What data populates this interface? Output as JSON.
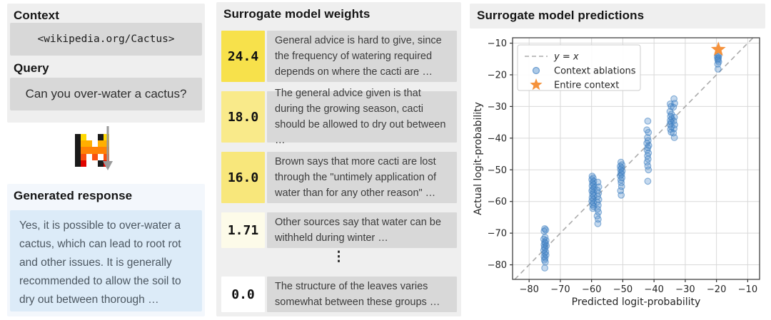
{
  "left_panel": {
    "context_label": "Context",
    "context_value": "<wikipedia.org/Cactus>",
    "query_label": "Query",
    "query_value": "Can you over-water a cactus?",
    "response_label": "Generated response",
    "response_value": "Yes, it is possible to over-water a cactus, which can lead to root rot and other issues. It is generally recommended to allow the soil to dry out between thorough …",
    "model_logo": {
      "name": "mistral-ai-logo",
      "palette": {
        "K": "#1a1a1a",
        "Y": "#ffd800",
        "A": "#ffaf00",
        "O": "#ff8205",
        "F": "#fa500f",
        "R": "#e10500",
        ".": "transparent"
      },
      "rows": [
        [
          "K",
          "Y",
          ".",
          ".",
          "K",
          "Y"
        ],
        [
          "K",
          "A",
          "A",
          ".",
          "A",
          "A"
        ],
        [
          "K",
          "O",
          "O",
          "O",
          "O",
          "O"
        ],
        [
          "K",
          "F",
          ".",
          "F",
          ".",
          "F"
        ],
        [
          "K",
          "R",
          ".",
          ".",
          "K",
          "R"
        ]
      ]
    },
    "arrow_color": "#9a9a9a"
  },
  "middle_panel": {
    "title": "Surrogate model weights",
    "ellipsis": "⋮",
    "rows": [
      {
        "weight": "24.4",
        "highlight": "#f7e14b",
        "text": "General advice is hard to give, since the frequency of watering required depends on where the cacti are …"
      },
      {
        "weight": "18.0",
        "highlight": "#f9ea8a",
        "text": "The general advice given is that during the growing season, cacti should be allowed to dry out between …"
      },
      {
        "weight": "16.0",
        "highlight": "#f8e77b",
        "text": "Brown says that more cacti are lost through the \"untimely application of water than for any other reason\" …"
      },
      {
        "weight": "1.71",
        "highlight": "#fdfbe9",
        "text": "Other sources say that water can be withheld during winter …"
      },
      {
        "weight": "0.0",
        "highlight": "#ffffff",
        "text": "The structure of the leaves varies somewhat between these groups …"
      }
    ]
  },
  "right_panel": {
    "title": "Surrogate model predictions"
  },
  "chart_data": {
    "type": "scatter",
    "xlabel": "Predicted logit-probability",
    "ylabel": "Actual logit-probability",
    "xlim": [
      -85.3,
      -6.2
    ],
    "ylim": [
      -84.6,
      -8.3
    ],
    "xticks": [
      -80,
      -70,
      -60,
      -50,
      -40,
      -30,
      -20,
      -10
    ],
    "yticks": [
      -10,
      -20,
      -30,
      -40,
      -50,
      -60,
      -70,
      -80
    ],
    "grid": true,
    "grid_color": "#d9d9d9",
    "legend_position": "upper left",
    "series": [
      {
        "name": "y = x",
        "type": "line",
        "style": "dashed",
        "color": "#ababab",
        "italic": true,
        "points": [
          [
            -84.6,
            -84.6
          ],
          [
            -8.3,
            -8.3
          ]
        ]
      },
      {
        "name": "Context ablations",
        "type": "scatter",
        "marker": "circle",
        "color": "#3d7ec0",
        "fill": "#4a8ac9",
        "alpha": 0.32,
        "points": [
          [
            -75.0,
            -68.6
          ],
          [
            -74.7,
            -69.0
          ],
          [
            -75.2,
            -69.4
          ],
          [
            -74.9,
            -71.3
          ],
          [
            -75.3,
            -71.9
          ],
          [
            -74.6,
            -72.3
          ],
          [
            -75.0,
            -72.8
          ],
          [
            -74.8,
            -73.2
          ],
          [
            -75.2,
            -73.6
          ],
          [
            -74.5,
            -74.0
          ],
          [
            -75.1,
            -74.4
          ],
          [
            -74.9,
            -74.9
          ],
          [
            -75.3,
            -75.4
          ],
          [
            -74.7,
            -75.9
          ],
          [
            -75.0,
            -76.4
          ],
          [
            -74.6,
            -76.9
          ],
          [
            -75.2,
            -77.4
          ],
          [
            -74.9,
            -77.9
          ],
          [
            -75.1,
            -78.5
          ],
          [
            -74.8,
            -79.1
          ],
          [
            -75.0,
            -81.0
          ],
          [
            -59.8,
            -52.0
          ],
          [
            -59.5,
            -52.6
          ],
          [
            -59.9,
            -53.1
          ],
          [
            -59.3,
            -53.6
          ],
          [
            -59.7,
            -54.1
          ],
          [
            -59.4,
            -54.6
          ],
          [
            -59.8,
            -55.1
          ],
          [
            -59.2,
            -55.6
          ],
          [
            -59.6,
            -56.1
          ],
          [
            -59.9,
            -56.6
          ],
          [
            -59.4,
            -57.1
          ],
          [
            -59.7,
            -57.7
          ],
          [
            -59.3,
            -58.2
          ],
          [
            -59.8,
            -58.8
          ],
          [
            -59.5,
            -59.3
          ],
          [
            -59.9,
            -59.9
          ],
          [
            -59.4,
            -60.4
          ],
          [
            -59.7,
            -61.0
          ],
          [
            -59.3,
            -61.6
          ],
          [
            -59.6,
            -62.2
          ],
          [
            -58.0,
            -53.9
          ],
          [
            -57.7,
            -55.4
          ],
          [
            -58.2,
            -56.4
          ],
          [
            -57.8,
            -57.4
          ],
          [
            -58.1,
            -58.4
          ],
          [
            -57.7,
            -59.4
          ],
          [
            -58.2,
            -60.2
          ],
          [
            -57.9,
            -61.2
          ],
          [
            -58.1,
            -62.4
          ],
          [
            -57.8,
            -63.4
          ],
          [
            -58.2,
            -64.6
          ],
          [
            -57.9,
            -65.6
          ],
          [
            -58.0,
            -67.0
          ],
          [
            -50.6,
            -47.6
          ],
          [
            -50.3,
            -48.4
          ],
          [
            -50.8,
            -48.9
          ],
          [
            -50.4,
            -49.4
          ],
          [
            -50.7,
            -49.9
          ],
          [
            -50.2,
            -50.4
          ],
          [
            -50.6,
            -50.9
          ],
          [
            -50.4,
            -51.4
          ],
          [
            -50.8,
            -51.9
          ],
          [
            -50.3,
            -52.5
          ],
          [
            -50.6,
            -53.2
          ],
          [
            -50.5,
            -54.1
          ],
          [
            -50.4,
            -55.3
          ],
          [
            -50.7,
            -56.6
          ],
          [
            -50.5,
            -58.0
          ],
          [
            -42.0,
            -34.6
          ],
          [
            -42.3,
            -37.4
          ],
          [
            -41.8,
            -38.2
          ],
          [
            -42.1,
            -39.8
          ],
          [
            -41.9,
            -40.8
          ],
          [
            -42.3,
            -41.6
          ],
          [
            -41.7,
            -42.3
          ],
          [
            -42.0,
            -43.0
          ],
          [
            -42.2,
            -43.8
          ],
          [
            -41.8,
            -44.7
          ],
          [
            -42.1,
            -45.6
          ],
          [
            -41.9,
            -46.6
          ],
          [
            -42.2,
            -47.6
          ],
          [
            -42.0,
            -48.8
          ],
          [
            -41.8,
            -50.0
          ],
          [
            -42.0,
            -53.6
          ],
          [
            -34.8,
            -29.2
          ],
          [
            -34.5,
            -30.0
          ],
          [
            -34.9,
            -31.6
          ],
          [
            -34.4,
            -32.4
          ],
          [
            -34.7,
            -33.1
          ],
          [
            -34.3,
            -33.8
          ],
          [
            -34.8,
            -34.4
          ],
          [
            -34.5,
            -35.0
          ],
          [
            -34.9,
            -35.7
          ],
          [
            -34.4,
            -36.4
          ],
          [
            -34.7,
            -37.2
          ],
          [
            -34.5,
            -38.1
          ],
          [
            -33.6,
            -27.6
          ],
          [
            -33.4,
            -29.0
          ],
          [
            -33.8,
            -30.2
          ],
          [
            -33.5,
            -33.4
          ],
          [
            -33.7,
            -34.6
          ],
          [
            -33.4,
            -35.8
          ],
          [
            -33.6,
            -37.0
          ],
          [
            -33.8,
            -38.4
          ],
          [
            -33.5,
            -39.8
          ],
          [
            -19.5,
            -13.6
          ],
          [
            -19.3,
            -14.0
          ],
          [
            -19.7,
            -14.3
          ],
          [
            -19.4,
            -14.7
          ],
          [
            -19.6,
            -15.0
          ],
          [
            -19.5,
            -15.4
          ],
          [
            -19.3,
            -15.9
          ],
          [
            -19.6,
            -16.6
          ],
          [
            -19.5,
            -18.2
          ]
        ]
      },
      {
        "name": "Entire context",
        "type": "scatter",
        "marker": "star",
        "color": "#f5923c",
        "points": [
          [
            -19.4,
            -12.0
          ]
        ]
      }
    ]
  }
}
